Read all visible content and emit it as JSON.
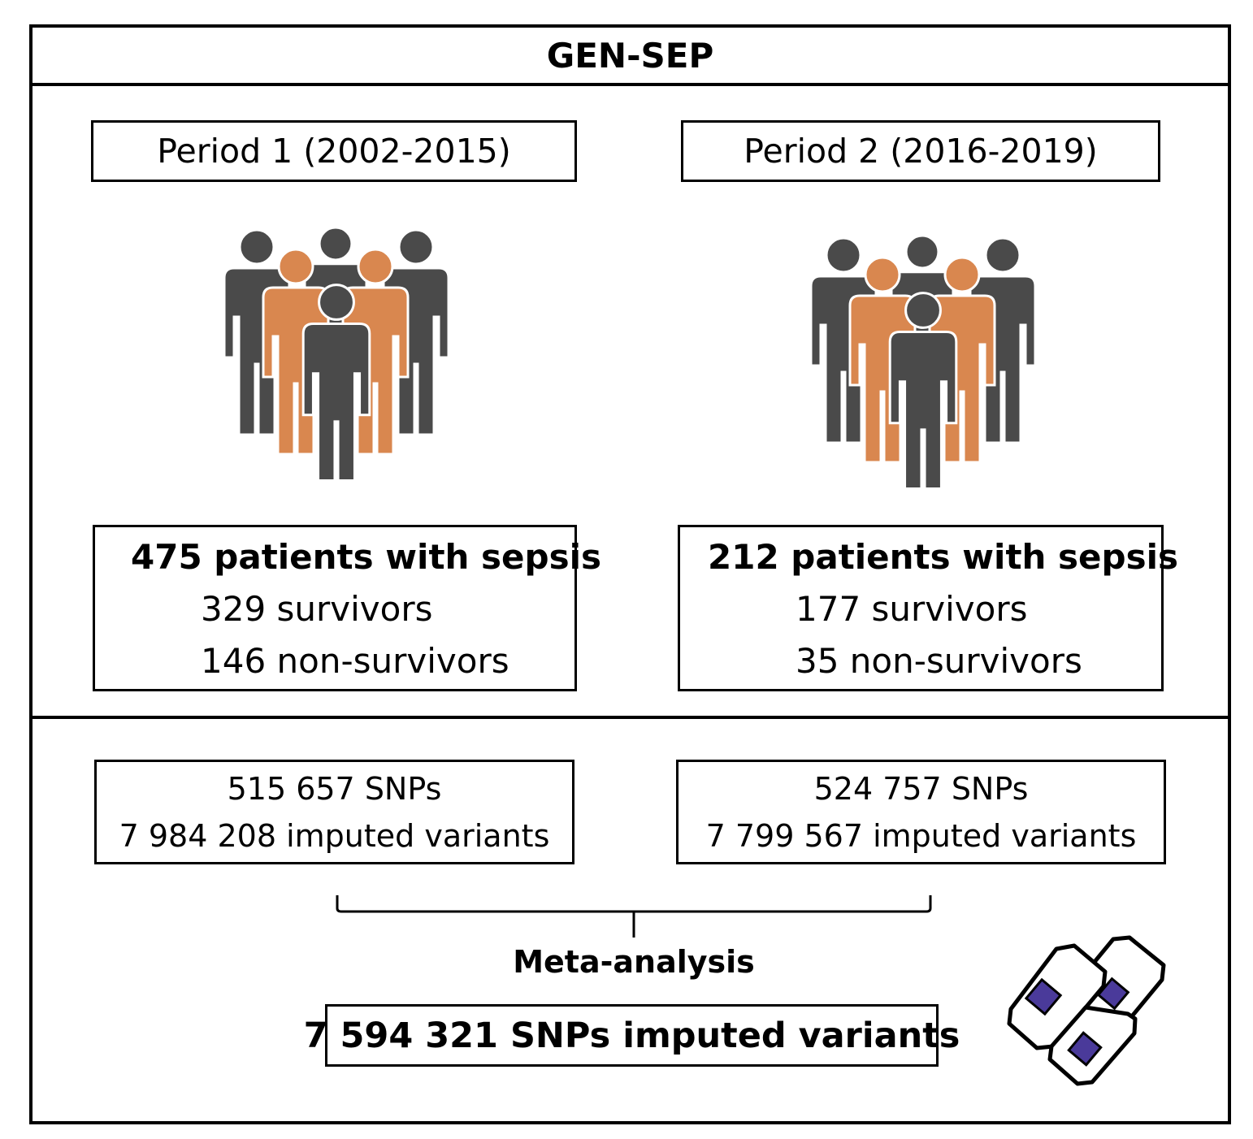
{
  "title": "GEN-SEP",
  "colors": {
    "person_dark": "#4a4a4a",
    "person_orange": "#d9874f",
    "chip": "#4a3a9a"
  },
  "icons": {
    "group": "group-of-people-icon",
    "chips": "dna-chip-cards-icon"
  },
  "periods": [
    {
      "label": "Period 1 (2002-2015)",
      "patients": "475 patients with sepsis",
      "survivors": "329 survivors",
      "non_survivors": "146 non-survivors",
      "snps": "515 657 SNPs",
      "imputed": "7 984 208 imputed variants"
    },
    {
      "label": "Period 2 (2016-2019)",
      "patients": "212 patients with sepsis",
      "survivors": "177 survivors",
      "non_survivors": "35 non-survivors",
      "snps": "524 757 SNPs",
      "imputed": "7 799 567 imputed variants"
    }
  ],
  "meta_label": "Meta-analysis",
  "result": "7 594 321 SNPs imputed variants"
}
